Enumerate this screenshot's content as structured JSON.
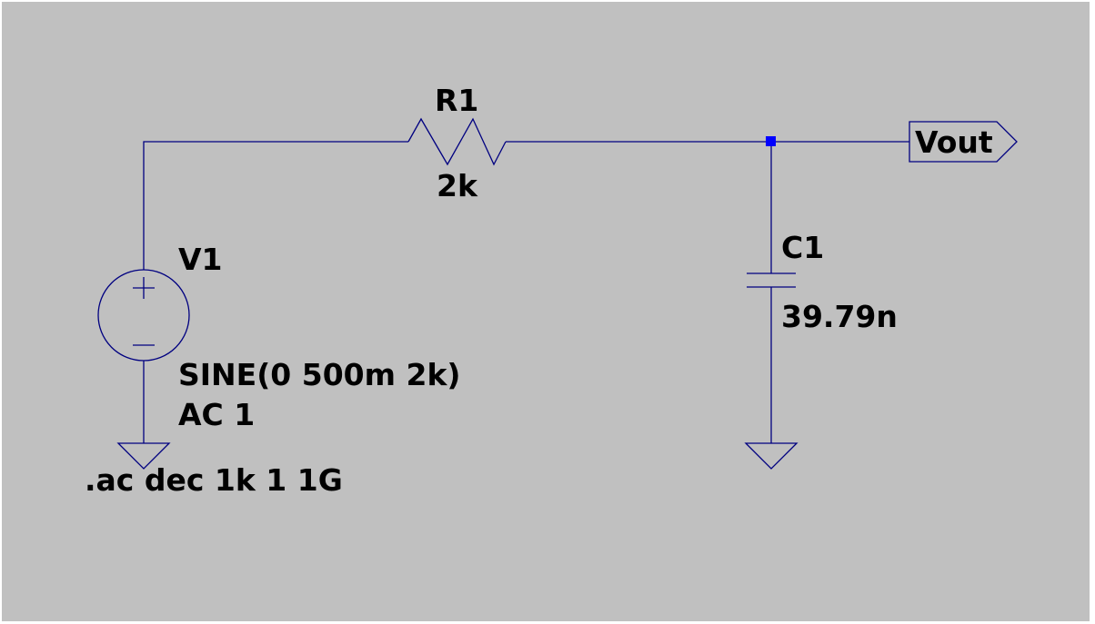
{
  "colors": {
    "background": "#c0c0c0",
    "wire": "#000080",
    "junction": "#0000ff",
    "text": "#000000"
  },
  "components": {
    "v1": {
      "name": "V1",
      "value_line1": "SINE(0 500m 2k)",
      "value_line2": "AC 1",
      "symbol": "voltage-source"
    },
    "r1": {
      "name": "R1",
      "value": "2k",
      "symbol": "resistor"
    },
    "c1": {
      "name": "C1",
      "value": "39.79n",
      "symbol": "capacitor"
    }
  },
  "net_label": {
    "text": "Vout",
    "symbol": "output-port-flag"
  },
  "directive": {
    "text": ".ac dec 1k 1 1G"
  }
}
